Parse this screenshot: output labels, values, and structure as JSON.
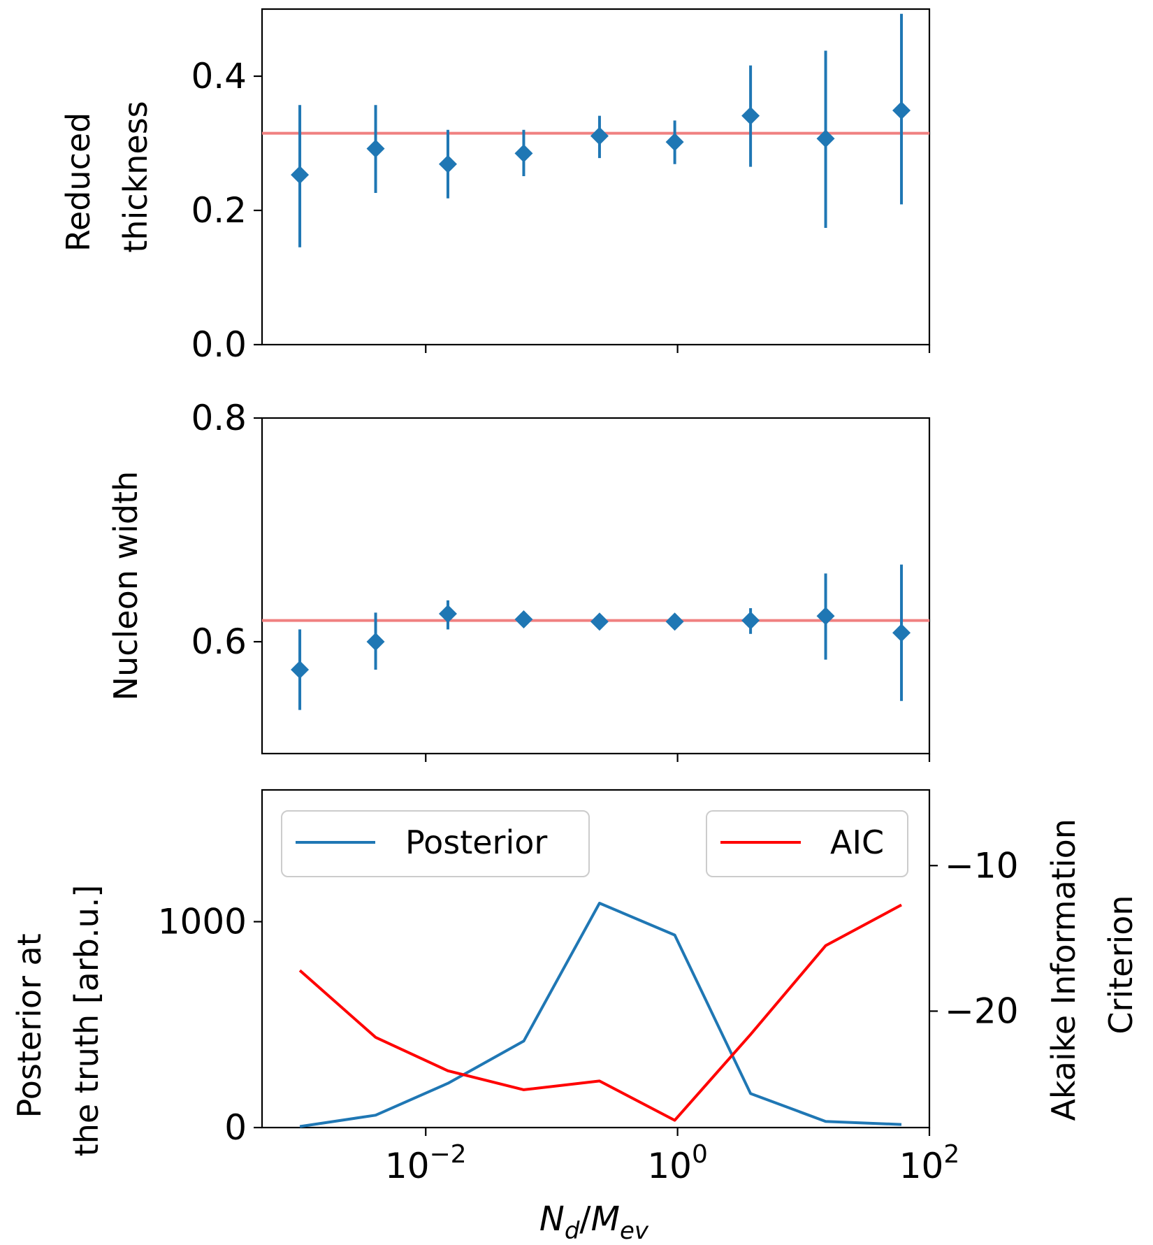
{
  "chart_data": [
    {
      "type": "scatter",
      "x_scale": "log",
      "xlim_exp": [
        -3.3,
        2.0
      ],
      "ylim": [
        0.0,
        0.5
      ],
      "ylabel_lines": [
        "Reduced",
        "thickness"
      ],
      "yticks": [
        {
          "v": 0.0,
          "label": "0.0"
        },
        {
          "v": 0.2,
          "label": "0.2"
        },
        {
          "v": 0.4,
          "label": "0.4"
        }
      ],
      "reference_y": 0.315,
      "points": [
        {
          "x": 0.001,
          "y": 0.253,
          "lo": 0.145,
          "hi": 0.357
        },
        {
          "x": 0.004,
          "y": 0.292,
          "lo": 0.226,
          "hi": 0.357
        },
        {
          "x": 0.015,
          "y": 0.269,
          "lo": 0.218,
          "hi": 0.32
        },
        {
          "x": 0.06,
          "y": 0.285,
          "lo": 0.251,
          "hi": 0.32
        },
        {
          "x": 0.24,
          "y": 0.311,
          "lo": 0.278,
          "hi": 0.341
        },
        {
          "x": 0.95,
          "y": 0.302,
          "lo": 0.269,
          "hi": 0.334
        },
        {
          "x": 3.8,
          "y": 0.341,
          "lo": 0.265,
          "hi": 0.416
        },
        {
          "x": 15.0,
          "y": 0.307,
          "lo": 0.174,
          "hi": 0.438
        },
        {
          "x": 60.0,
          "y": 0.349,
          "lo": 0.209,
          "hi": 0.493
        }
      ]
    },
    {
      "type": "scatter",
      "x_scale": "log",
      "xlim_exp": [
        -3.3,
        2.0
      ],
      "ylim": [
        0.5,
        0.8
      ],
      "ylabel_lines": [
        "Nucleon width"
      ],
      "yticks": [
        {
          "v": 0.6,
          "label": "0.6"
        },
        {
          "v": 0.8,
          "label": "0.8"
        }
      ],
      "reference_y": 0.619,
      "points": [
        {
          "x": 0.001,
          "y": 0.575,
          "lo": 0.539,
          "hi": 0.611
        },
        {
          "x": 0.004,
          "y": 0.6,
          "lo": 0.575,
          "hi": 0.626
        },
        {
          "x": 0.015,
          "y": 0.625,
          "lo": 0.611,
          "hi": 0.637
        },
        {
          "x": 0.06,
          "y": 0.62,
          "lo": 0.614,
          "hi": 0.625
        },
        {
          "x": 0.24,
          "y": 0.618,
          "lo": 0.614,
          "hi": 0.622
        },
        {
          "x": 0.95,
          "y": 0.618,
          "lo": 0.614,
          "hi": 0.622
        },
        {
          "x": 3.8,
          "y": 0.619,
          "lo": 0.607,
          "hi": 0.63
        },
        {
          "x": 15.0,
          "y": 0.623,
          "lo": 0.584,
          "hi": 0.661
        },
        {
          "x": 60.0,
          "y": 0.608,
          "lo": 0.547,
          "hi": 0.669
        }
      ]
    },
    {
      "type": "line",
      "x_scale": "log",
      "xlim_exp": [
        -3.3,
        2.0
      ],
      "xticks": [
        {
          "exp": -2,
          "base": "10",
          "sup": "−2"
        },
        {
          "exp": 0,
          "base": "10",
          "sup": "0"
        },
        {
          "exp": 2,
          "base": "10",
          "sup": "2"
        }
      ],
      "xlabel": {
        "n": "N",
        "d": "d",
        "slash": "/",
        "m": "M",
        "ev": "ev"
      },
      "left_axis": {
        "ylabel_lines": [
          "Posterior at",
          "the truth [arb.u.]"
        ],
        "ylim": [
          0,
          1640
        ],
        "yticks": [
          {
            "v": 0,
            "label": "0"
          },
          {
            "v": 1000,
            "label": "1000"
          }
        ]
      },
      "right_axis": {
        "ylabel_lines": [
          "Akaike Information",
          "Criterion"
        ],
        "ylim": [
          -28.0,
          -4.8
        ],
        "yticks": [
          {
            "v": -10,
            "label": "−10"
          },
          {
            "v": -20,
            "label": "−20"
          }
        ]
      },
      "series": [
        {
          "name": "Posterior",
          "axis": "left",
          "color": "#1f77b4",
          "x": [
            0.001,
            0.004,
            0.015,
            0.06,
            0.24,
            0.95,
            3.8,
            15.0,
            60.0
          ],
          "y": [
            5,
            60,
            215,
            420,
            1090,
            935,
            165,
            30,
            15
          ]
        },
        {
          "name": "AIC",
          "axis": "right",
          "color": "#ff0000",
          "x": [
            0.001,
            0.004,
            0.015,
            0.06,
            0.24,
            0.95,
            3.8,
            15.0,
            60.0
          ],
          "y": [
            -17.2,
            -21.8,
            -24.1,
            -25.4,
            -24.8,
            -27.5,
            -21.6,
            -15.5,
            -12.7
          ]
        }
      ]
    }
  ],
  "colors": {
    "marker": "#1f77b4",
    "reference_line": "#f08080",
    "posterior": "#1f77b4",
    "aic": "#ff0000"
  }
}
